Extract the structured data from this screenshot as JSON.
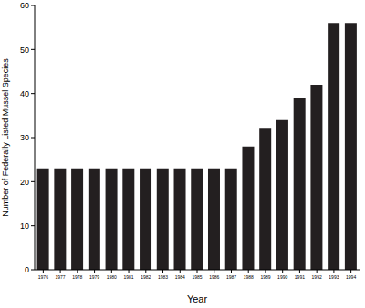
{
  "chart_data": {
    "type": "bar",
    "x_label": "Year",
    "y_label": "Number of Federally Listed Mussel Species",
    "categories": [
      "1976",
      "1977",
      "1978",
      "1979",
      "1980",
      "1981",
      "1982",
      "1983",
      "1984",
      "1985",
      "1986",
      "1987",
      "1988",
      "1989",
      "1990",
      "1991",
      "1992",
      "1993",
      "1994"
    ],
    "values": [
      23,
      23,
      23,
      23,
      23,
      23,
      23,
      23,
      23,
      23,
      23,
      23,
      28,
      32,
      34,
      39,
      42,
      56,
      56
    ],
    "color": "#231f20",
    "ylim": [
      0,
      60
    ],
    "yticks": [
      0,
      10,
      20,
      30,
      40,
      50,
      60
    ],
    "grid": false
  }
}
